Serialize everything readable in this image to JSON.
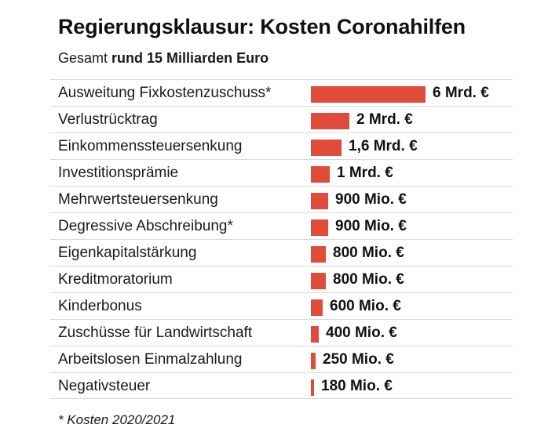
{
  "chart_data": {
    "type": "bar",
    "orientation": "horizontal",
    "title": "Regierungsklausur: Kosten Coronahilfen",
    "subtitle_prefix": "Gesamt",
    "subtitle_bold": "rund 15 Milliarden Euro",
    "unit": "Mrd. €",
    "categories": [
      "Ausweitung Fixkostenzuschuss*",
      "Verlustrücktrag",
      "Einkommenssteuersenkung",
      "Investitionsprämie",
      "Mehrwertsteuersenkung",
      "Degressive Abschreibung*",
      "Eigenkapitalstärkung",
      "Kreditmoratorium",
      "Kinderbonus",
      "Zuschüsse für Landwirtschaft",
      "Arbeitslosen Einmalzahlung",
      "Negativsteuer"
    ],
    "values": [
      6,
      2,
      1.6,
      1,
      0.9,
      0.9,
      0.8,
      0.8,
      0.6,
      0.4,
      0.25,
      0.18
    ],
    "value_labels": [
      "6 Mrd. €",
      "2 Mrd. €",
      "1,6 Mrd. €",
      "1 Mrd. €",
      "900 Mio. €",
      "900 Mio. €",
      "800 Mio. €",
      "800 Mio. €",
      "600 Mio. €",
      "400 Mio. €",
      "250 Mio. €",
      "180 Mio. €"
    ],
    "bar_color": "#e04b3a",
    "grid": false,
    "legend": "none",
    "footnote": "* Kosten 2020/2021"
  }
}
